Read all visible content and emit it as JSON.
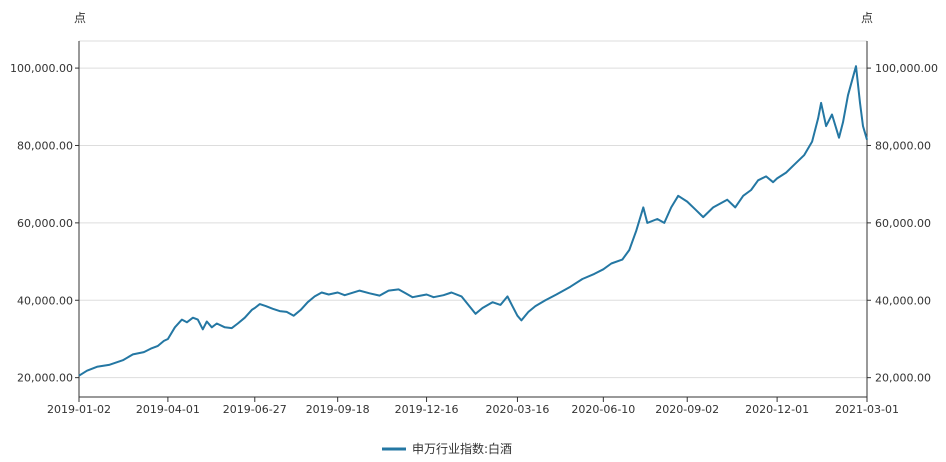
{
  "chart_data": {
    "type": "line",
    "y_unit_left": "点",
    "y_unit_right": "点",
    "ylim": [
      15000,
      107000
    ],
    "y_ticks": [
      20000,
      40000,
      60000,
      80000,
      100000
    ],
    "y_tick_labels": [
      "20,000.00",
      "40,000.00",
      "60,000.00",
      "80,000.00",
      "100,000.00"
    ],
    "x_start": "2019-01-02",
    "x_end": "2021-03-01",
    "x_ticks": [
      "2019-01-02",
      "2019-04-01",
      "2019-06-27",
      "2019-09-18",
      "2019-12-16",
      "2020-03-16",
      "2020-06-10",
      "2020-09-02",
      "2020-12-01",
      "2021-03-01"
    ],
    "grid": true,
    "legend_position": "bottom",
    "color": "#2477a3",
    "series": [
      {
        "name": "申万行业指数:白酒",
        "points": [
          [
            "2019-01-02",
            20500
          ],
          [
            "2019-01-10",
            21800
          ],
          [
            "2019-01-20",
            22800
          ],
          [
            "2019-02-01",
            23300
          ],
          [
            "2019-02-15",
            24500
          ],
          [
            "2019-02-25",
            26000
          ],
          [
            "2019-03-08",
            26600
          ],
          [
            "2019-03-15",
            27500
          ],
          [
            "2019-03-22",
            28200
          ],
          [
            "2019-03-28",
            29500
          ],
          [
            "2019-04-01",
            30000
          ],
          [
            "2019-04-08",
            33000
          ],
          [
            "2019-04-15",
            35000
          ],
          [
            "2019-04-20",
            34300
          ],
          [
            "2019-04-26",
            35500
          ],
          [
            "2019-05-01",
            35000
          ],
          [
            "2019-05-06",
            32500
          ],
          [
            "2019-05-10",
            34500
          ],
          [
            "2019-05-15",
            33000
          ],
          [
            "2019-05-20",
            34000
          ],
          [
            "2019-05-28",
            33000
          ],
          [
            "2019-06-04",
            32800
          ],
          [
            "2019-06-10",
            34000
          ],
          [
            "2019-06-17",
            35500
          ],
          [
            "2019-06-24",
            37500
          ],
          [
            "2019-06-27",
            38000
          ],
          [
            "2019-07-02",
            39000
          ],
          [
            "2019-07-08",
            38500
          ],
          [
            "2019-07-15",
            37800
          ],
          [
            "2019-07-22",
            37200
          ],
          [
            "2019-07-29",
            37000
          ],
          [
            "2019-08-05",
            36000
          ],
          [
            "2019-08-12",
            37500
          ],
          [
            "2019-08-19",
            39500
          ],
          [
            "2019-08-26",
            41000
          ],
          [
            "2019-09-02",
            42000
          ],
          [
            "2019-09-09",
            41500
          ],
          [
            "2019-09-18",
            42000
          ],
          [
            "2019-09-25",
            41300
          ],
          [
            "2019-10-10",
            42500
          ],
          [
            "2019-10-20",
            41800
          ],
          [
            "2019-10-30",
            41200
          ],
          [
            "2019-11-08",
            42500
          ],
          [
            "2019-11-18",
            42800
          ],
          [
            "2019-11-25",
            41800
          ],
          [
            "2019-12-02",
            40800
          ],
          [
            "2019-12-10",
            41200
          ],
          [
            "2019-12-16",
            41500
          ],
          [
            "2019-12-23",
            40800
          ],
          [
            "2020-01-02",
            41300
          ],
          [
            "2020-01-10",
            42000
          ],
          [
            "2020-01-20",
            41000
          ],
          [
            "2020-02-03",
            36500
          ],
          [
            "2020-02-10",
            38000
          ],
          [
            "2020-02-20",
            39500
          ],
          [
            "2020-02-28",
            38800
          ],
          [
            "2020-03-06",
            41000
          ],
          [
            "2020-03-11",
            38500
          ],
          [
            "2020-03-16",
            36000
          ],
          [
            "2020-03-20",
            34800
          ],
          [
            "2020-03-27",
            37000
          ],
          [
            "2020-04-03",
            38500
          ],
          [
            "2020-04-13",
            40000
          ],
          [
            "2020-04-24",
            41500
          ],
          [
            "2020-05-08",
            43500
          ],
          [
            "2020-05-20",
            45500
          ],
          [
            "2020-06-01",
            46800
          ],
          [
            "2020-06-10",
            48000
          ],
          [
            "2020-06-18",
            49500
          ],
          [
            "2020-06-29",
            50500
          ],
          [
            "2020-07-06",
            53000
          ],
          [
            "2020-07-13",
            58000
          ],
          [
            "2020-07-20",
            64000
          ],
          [
            "2020-07-24",
            60000
          ],
          [
            "2020-08-03",
            61000
          ],
          [
            "2020-08-10",
            60000
          ],
          [
            "2020-08-17",
            64000
          ],
          [
            "2020-08-24",
            67000
          ],
          [
            "2020-09-02",
            65500
          ],
          [
            "2020-09-10",
            63500
          ],
          [
            "2020-09-18",
            61500
          ],
          [
            "2020-09-28",
            64000
          ],
          [
            "2020-10-12",
            66000
          ],
          [
            "2020-10-20",
            64000
          ],
          [
            "2020-10-28",
            67000
          ],
          [
            "2020-11-05",
            68500
          ],
          [
            "2020-11-12",
            71000
          ],
          [
            "2020-11-20",
            72000
          ],
          [
            "2020-11-27",
            70500
          ],
          [
            "2020-12-01",
            71500
          ],
          [
            "2020-12-10",
            73000
          ],
          [
            "2020-12-18",
            75000
          ],
          [
            "2020-12-28",
            77500
          ],
          [
            "2021-01-05",
            81000
          ],
          [
            "2021-01-11",
            87000
          ],
          [
            "2021-01-14",
            91000
          ],
          [
            "2021-01-19",
            85000
          ],
          [
            "2021-01-25",
            88000
          ],
          [
            "2021-02-01",
            82000
          ],
          [
            "2021-02-05",
            86000
          ],
          [
            "2021-02-10",
            93000
          ],
          [
            "2021-02-18",
            100500
          ],
          [
            "2021-02-22",
            91000
          ],
          [
            "2021-02-25",
            85000
          ],
          [
            "2021-03-01",
            81500
          ]
        ]
      }
    ]
  }
}
